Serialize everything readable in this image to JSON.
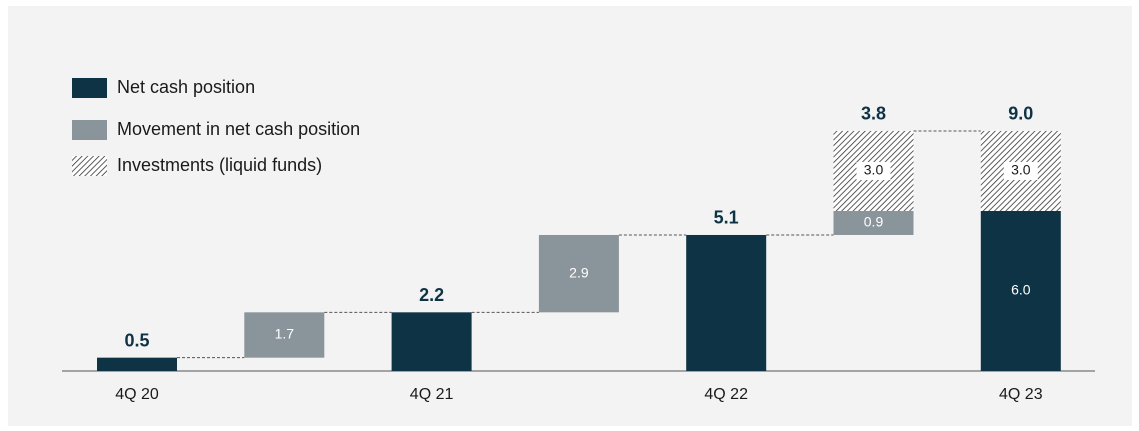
{
  "chart_data": {
    "type": "waterfall",
    "categories": [
      "4Q 20",
      null,
      "4Q 21",
      null,
      "4Q 22",
      null,
      "4Q 23"
    ],
    "series": [
      {
        "name": "Net cash position",
        "color": "#0e3345",
        "kind": "base",
        "values": [
          0.5,
          null,
          2.2,
          null,
          5.1,
          null,
          6.0
        ],
        "value_labels": [
          null,
          null,
          null,
          null,
          null,
          null,
          "6.0"
        ]
      },
      {
        "name": "Movement in net cash position",
        "color": "#8a949b",
        "kind": "movement",
        "values": [
          null,
          1.7,
          null,
          2.9,
          null,
          0.9,
          null
        ],
        "value_labels": [
          null,
          "1.7",
          null,
          "2.9",
          null,
          "0.9",
          null
        ]
      },
      {
        "name": "Investments (liquid funds)",
        "color": "#333333",
        "kind": "hatch",
        "values": [
          null,
          null,
          null,
          null,
          null,
          3.0,
          3.0
        ],
        "value_labels": [
          null,
          null,
          null,
          null,
          null,
          "3.0",
          "3.0"
        ]
      }
    ],
    "totals": [
      0.5,
      null,
      2.2,
      null,
      5.1,
      3.8,
      9.0
    ],
    "total_labels": [
      "0.5",
      null,
      "2.2",
      null,
      "5.1",
      "3.8",
      "9.0"
    ],
    "ylim": [
      0,
      10
    ]
  }
}
